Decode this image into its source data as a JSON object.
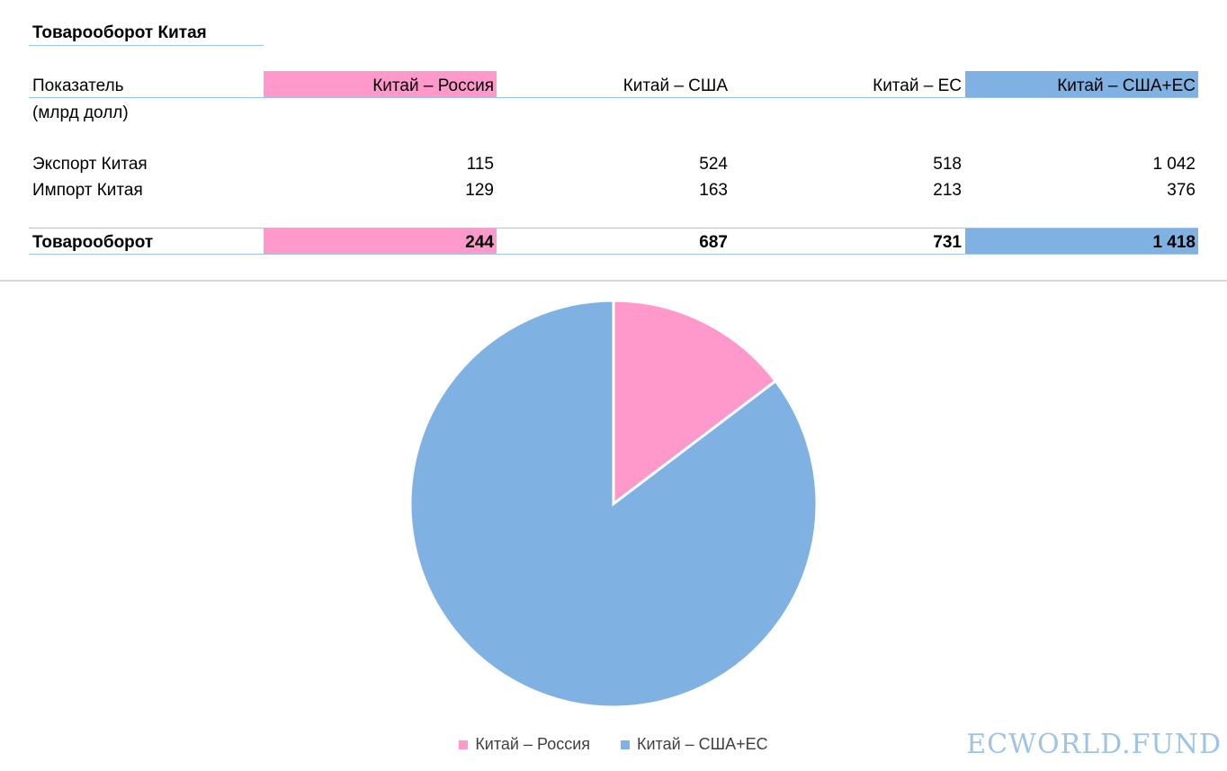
{
  "table": {
    "title": "Товарооборот Китая",
    "indicator_label_1": "Показатель",
    "indicator_label_2": "(млрд долл)",
    "columns": [
      "Китай – Россия",
      "Китай – США",
      "Китай – ЕС",
      "Китай – США+ЕС"
    ],
    "rows": [
      {
        "label": "Экспорт Китая",
        "values": [
          "115",
          "524",
          "518",
          "1 042"
        ]
      },
      {
        "label": "Импорт Китая",
        "values": [
          "129",
          "163",
          "213",
          "376"
        ]
      }
    ],
    "total": {
      "label": "Товарооборот",
      "values": [
        "244",
        "687",
        "731",
        "1 418"
      ]
    },
    "highlight_colors": {
      "russia": "#ff99cc",
      "usa_eu": "#7fb2e2"
    }
  },
  "chart_data": {
    "type": "pie",
    "categories": [
      "Китай – Россия",
      "Китай – США+ЕС"
    ],
    "values": [
      244,
      1418
    ],
    "colors": [
      "#ff99cc",
      "#7fb2e2"
    ],
    "legend": "bottom-center"
  },
  "watermark": "ECWORLD.FUND"
}
